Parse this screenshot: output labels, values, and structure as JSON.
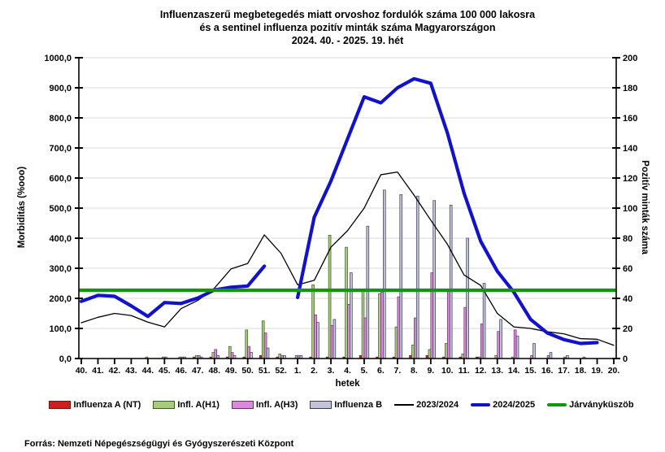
{
  "title": {
    "line1": "Influenzaszerű megbetegedés miatt orvoshoz fordulók száma 100 000 lakosra",
    "line2": "és a sentinel influenza pozitív minták száma Magyarországon",
    "line3": "2024. 40. - 2025. 19. hét"
  },
  "axes": {
    "left_label": "Morbiditás (%ooo)",
    "right_label": "Pozitív minták száma",
    "x_label": "hetek",
    "left_ticks": [
      "0,0",
      "100,0",
      "200,0",
      "300,0",
      "400,0",
      "500,0",
      "600,0",
      "700,0",
      "800,0",
      "900,0",
      "1000,0"
    ],
    "right_ticks": [
      "0",
      "20",
      "40",
      "60",
      "80",
      "100",
      "120",
      "140",
      "160",
      "180",
      "200"
    ]
  },
  "chart_data": {
    "type": "bar+line combo",
    "categories": [
      "40.",
      "41.",
      "42.",
      "43.",
      "44.",
      "45.",
      "46.",
      "47.",
      "48.",
      "49.",
      "50.",
      "51.",
      "52.",
      "1.",
      "2.",
      "3.",
      "4.",
      "5.",
      "6.",
      "7.",
      "8.",
      "9.",
      "10.",
      "11.",
      "12.",
      "13.",
      "14.",
      "15.",
      "16.",
      "17.",
      "18.",
      "19.",
      "20."
    ],
    "left_range": [
      0,
      1000
    ],
    "right_range": [
      0,
      200
    ],
    "grid": "horizontal",
    "bar_series": [
      {
        "name": "Influenza A (NT)",
        "axis": "right",
        "color": "#cc1f1f",
        "stroke": "#7a1010",
        "values": [
          0,
          0,
          0,
          0,
          0,
          0,
          0,
          1,
          1,
          1,
          1,
          2,
          1,
          0,
          1,
          1,
          1,
          2,
          1,
          1,
          2,
          2,
          1,
          1,
          1,
          0,
          0,
          0,
          0,
          0,
          0,
          0,
          0
        ]
      },
      {
        "name": "Infl. A(H1)",
        "axis": "right",
        "color": "#a9cb7f",
        "stroke": "#3c5a20",
        "values": [
          0,
          0,
          0,
          0,
          1,
          1,
          1,
          2,
          4,
          8,
          19,
          25,
          3,
          2,
          49,
          82,
          74,
          46,
          43,
          21,
          9,
          6,
          10,
          3,
          1,
          2,
          1,
          0,
          0,
          0,
          0,
          0,
          0
        ]
      },
      {
        "name": "Infl. A(H3)",
        "axis": "right",
        "color": "#da8ada",
        "stroke": "#6e2a6e",
        "values": [
          0,
          0,
          0,
          0,
          0,
          1,
          1,
          2,
          6,
          4,
          8,
          17,
          2,
          2,
          29,
          22,
          36,
          27,
          44,
          41,
          27,
          57,
          45,
          34,
          23,
          18,
          19,
          2,
          2,
          1,
          0,
          0,
          0
        ]
      },
      {
        "name": "Influenza B",
        "axis": "right",
        "color": "#c2c2d8",
        "stroke": "#3c3c50",
        "values": [
          0,
          0,
          0,
          0,
          0,
          0,
          1,
          1,
          2,
          2,
          4,
          7,
          2,
          2,
          24,
          26,
          57,
          88,
          112,
          109,
          108,
          105,
          102,
          80,
          50,
          26,
          15,
          10,
          4,
          2,
          1,
          0,
          0
        ]
      }
    ],
    "line_series": [
      {
        "name": "2023/2024",
        "axis": "left",
        "color": "#000000",
        "width": 1.3,
        "values": [
          119,
          137,
          150,
          143,
          121,
          105,
          166,
          193,
          234,
          298,
          316,
          411,
          350,
          245,
          260,
          370,
          425,
          500,
          611,
          620,
          543,
          460,
          380,
          278,
          243,
          150,
          105,
          100,
          89,
          82,
          66,
          64,
          44
        ]
      },
      {
        "name": "2024/2025",
        "axis": "left",
        "color": "#1212cc",
        "width": 4.2,
        "values": [
          190,
          210,
          207,
          175,
          140,
          186,
          183,
          201,
          228,
          237,
          241,
          307,
          null,
          203,
          470,
          590,
          730,
          870,
          850,
          900,
          930,
          915,
          750,
          550,
          390,
          290,
          220,
          130,
          85,
          63,
          50,
          53,
          null
        ]
      },
      {
        "name": "Járványküszöb",
        "axis": "left",
        "color": "#0a9a0a",
        "width": 4.2,
        "threshold": 227
      }
    ]
  },
  "legend": [
    {
      "label": "Influenza A (NT)",
      "kind": "box",
      "color": "#cc1f1f",
      "border": "#7a1010"
    },
    {
      "label": "Infl. A(H1)",
      "kind": "box",
      "color": "#a9cb7f",
      "border": "#3c5a20"
    },
    {
      "label": "Infl. A(H3)",
      "kind": "box",
      "color": "#da8ada",
      "border": "#6e2a6e"
    },
    {
      "label": "Influenza B",
      "kind": "box",
      "color": "#c2c2d8",
      "border": "#3c3c50"
    },
    {
      "label": "2023/2024",
      "kind": "line",
      "color": "#000000"
    },
    {
      "label": "2024/2025",
      "kind": "line-thick",
      "color": "#1212cc"
    },
    {
      "label": "Járványküszöb",
      "kind": "line-thick",
      "color": "#0a9a0a"
    }
  ],
  "footer": {
    "source": "Forrás: Nemzeti Népegészségügyi és Gyógyszerészeti Központ"
  }
}
